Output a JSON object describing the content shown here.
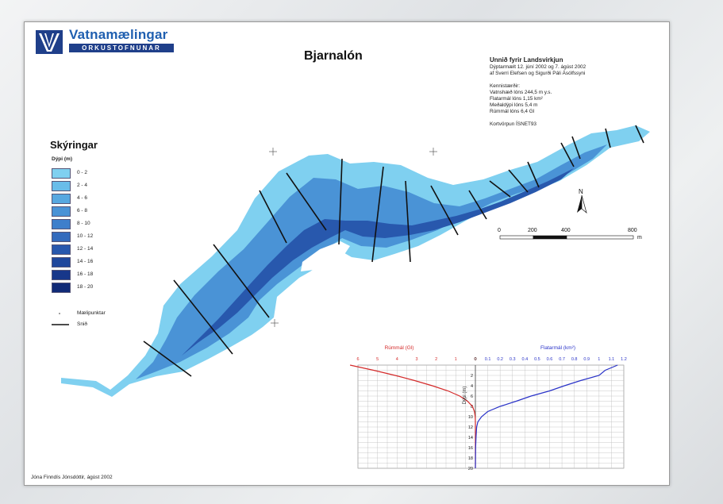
{
  "logo": {
    "name": "Vatnamælingar",
    "subtitle": "ORKUSTOFNUNAR"
  },
  "map_title": "Bjarnalón",
  "info": {
    "heading": "Unnið fyrir Landsvirkjun",
    "lines": [
      "Dýptarmælt 12. júní 2002 og 7. ágúst 2002",
      "af Sverri Elefsen og Sigurði Páli Ásólfssyni",
      "",
      "Kennistærðir:",
      "Vatnshæð lóns 244,5 m y.s.",
      "Flatarmál lóns 1,15 km²",
      "Meðaldýpi lóns 5,4 m",
      "Rúmmál lóns 6,4 Gl",
      "",
      "Kortvörpun ÍSNET93"
    ]
  },
  "legend": {
    "title": "Skýringar",
    "depth_label": "Dýpi (m)",
    "depth_classes": [
      {
        "label": "0 - 2",
        "color": "#7fd0f0"
      },
      {
        "label": "2 - 4",
        "color": "#69bde9"
      },
      {
        "label": "4 - 6",
        "color": "#58a8e0"
      },
      {
        "label": "6 - 8",
        "color": "#4a93d6"
      },
      {
        "label": "8 - 10",
        "color": "#3e7fcb"
      },
      {
        "label": "10 - 12",
        "color": "#336bbd"
      },
      {
        "label": "12 - 14",
        "color": "#2858ad"
      },
      {
        "label": "14 - 16",
        "color": "#1f479c"
      },
      {
        "label": "16 - 18",
        "color": "#17378a"
      },
      {
        "label": "18 - 20",
        "color": "#102a77"
      }
    ],
    "points_label": "Mælipunktar",
    "section_label": "Snið"
  },
  "scalebar": {
    "ticks": [
      "0",
      "200",
      "400",
      "800"
    ],
    "unit": "m"
  },
  "north_label": "N",
  "credit": "Jóna Finndís Jónsdóttir, ágúst 2002",
  "chart_data": {
    "type": "line",
    "title": "",
    "ylabel": "Dýpi (m)",
    "ylim": [
      0,
      20
    ],
    "y_ticks": [
      0,
      2,
      4,
      6,
      8,
      10,
      12,
      14,
      16,
      18,
      20
    ],
    "volume": {
      "label": "Rúmmál (Gl)",
      "color": "#d42a2a",
      "xlim": [
        0,
        6
      ],
      "x_ticks": [
        6,
        5,
        4,
        3,
        2,
        1,
        0
      ],
      "points": [
        [
          6.4,
          0
        ],
        [
          5.2,
          1
        ],
        [
          4.1,
          2
        ],
        [
          3.1,
          3
        ],
        [
          2.2,
          4
        ],
        [
          1.4,
          5
        ],
        [
          0.8,
          6
        ],
        [
          0.4,
          7
        ],
        [
          0.15,
          8
        ],
        [
          0.05,
          9
        ],
        [
          0.01,
          10
        ],
        [
          0.0,
          11
        ],
        [
          0.0,
          20
        ]
      ]
    },
    "area": {
      "label": "Flatarmál (km²)",
      "color": "#2a33c8",
      "xlim": [
        0,
        1.2
      ],
      "x_ticks": [
        0,
        0.1,
        0.2,
        0.3,
        0.4,
        0.5,
        0.6,
        0.7,
        0.8,
        0.9,
        1.0,
        1.1,
        1.2
      ],
      "points": [
        [
          1.15,
          0
        ],
        [
          1.05,
          1
        ],
        [
          1.0,
          2
        ],
        [
          0.85,
          3
        ],
        [
          0.72,
          4
        ],
        [
          0.6,
          5
        ],
        [
          0.45,
          6
        ],
        [
          0.33,
          7
        ],
        [
          0.2,
          8
        ],
        [
          0.1,
          9
        ],
        [
          0.05,
          10
        ],
        [
          0.02,
          11
        ],
        [
          0.01,
          12
        ],
        [
          0.005,
          14
        ],
        [
          0.002,
          16
        ],
        [
          0.0,
          20
        ]
      ]
    }
  }
}
